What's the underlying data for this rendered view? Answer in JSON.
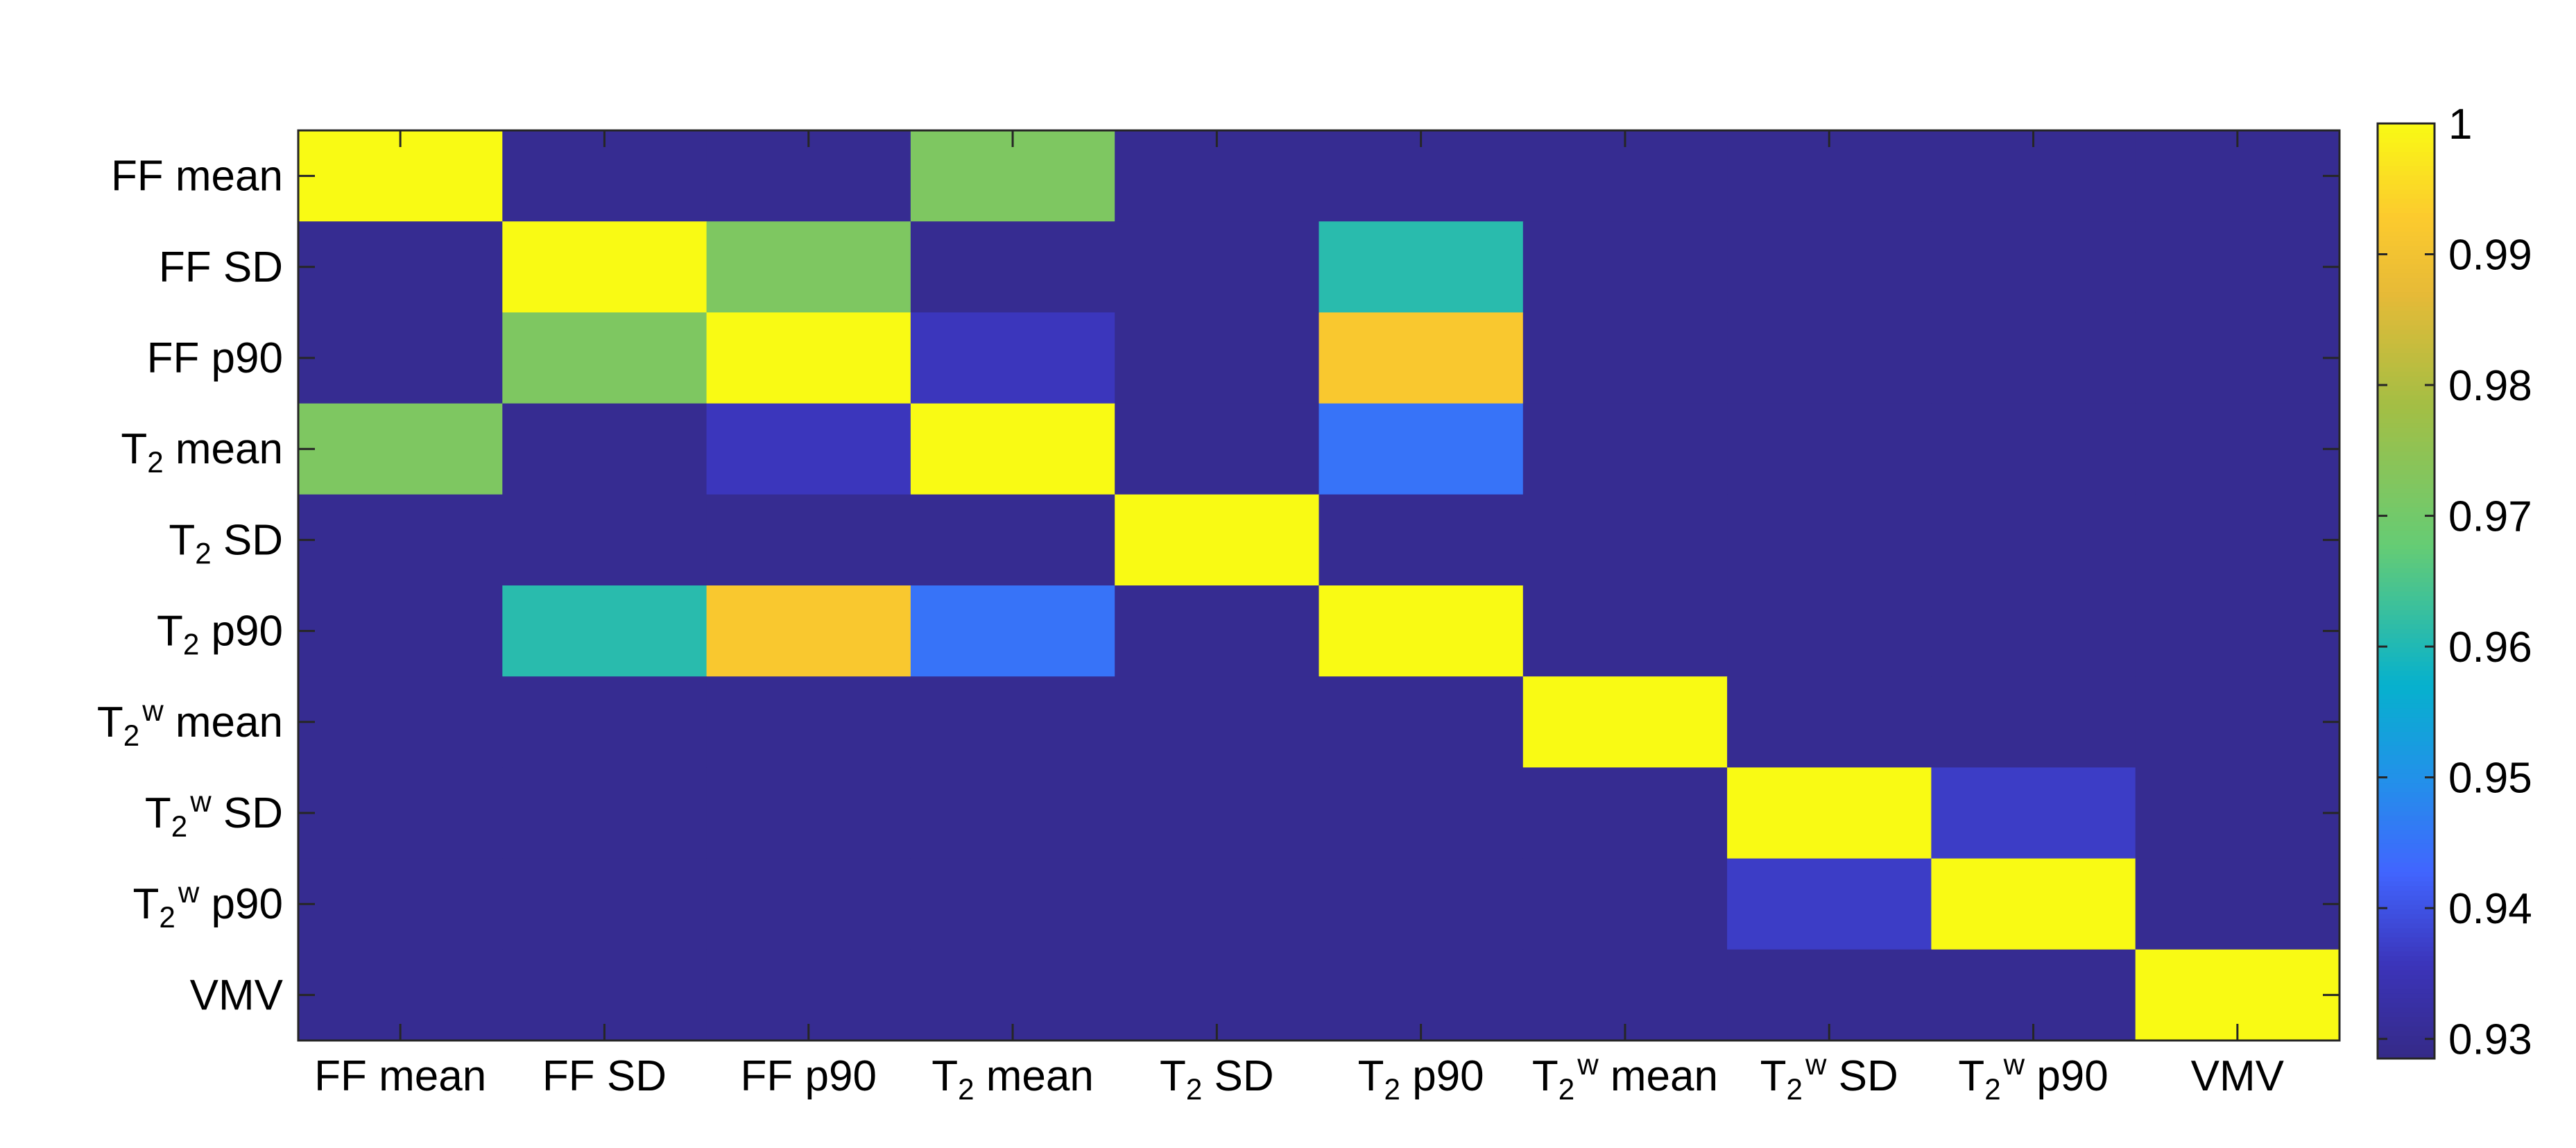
{
  "chart_data": {
    "type": "heatmap",
    "title": "",
    "xlabel": "",
    "ylabel": "",
    "labels": [
      {
        "base": "FF mean"
      },
      {
        "base": "FF SD"
      },
      {
        "base": "FF p90"
      },
      {
        "base": "T",
        "sub": "2",
        "rest": " mean"
      },
      {
        "base": "T",
        "sub": "2",
        "rest": " SD"
      },
      {
        "base": "T",
        "sub": "2",
        "rest": " p90"
      },
      {
        "base": "T",
        "sub": "2",
        "sup": "w",
        "rest": " mean"
      },
      {
        "base": "T",
        "sub": "2",
        "sup": "w",
        "rest": " SD"
      },
      {
        "base": "T",
        "sub": "2",
        "sup": "w",
        "rest": " p90"
      },
      {
        "base": "VMV"
      }
    ],
    "matrix": [
      [
        1.0,
        0.93,
        0.93,
        0.972,
        0.93,
        0.93,
        0.93,
        0.93,
        0.93,
        0.93
      ],
      [
        0.93,
        1.0,
        0.972,
        0.93,
        0.93,
        0.961,
        0.93,
        0.93,
        0.93,
        0.93
      ],
      [
        0.93,
        0.972,
        1.0,
        0.936,
        0.93,
        0.992,
        0.93,
        0.93,
        0.93,
        0.93
      ],
      [
        0.972,
        0.93,
        0.936,
        1.0,
        0.93,
        0.945,
        0.93,
        0.93,
        0.93,
        0.93
      ],
      [
        0.93,
        0.93,
        0.93,
        0.93,
        1.0,
        0.93,
        0.93,
        0.93,
        0.93,
        0.93
      ],
      [
        0.93,
        0.961,
        0.992,
        0.945,
        0.93,
        1.0,
        0.93,
        0.93,
        0.93,
        0.93
      ],
      [
        0.93,
        0.93,
        0.93,
        0.93,
        0.93,
        0.93,
        1.0,
        0.93,
        0.93,
        0.93
      ],
      [
        0.93,
        0.93,
        0.93,
        0.93,
        0.93,
        0.93,
        0.93,
        1.0,
        0.937,
        0.93
      ],
      [
        0.93,
        0.93,
        0.93,
        0.93,
        0.93,
        0.93,
        0.93,
        0.937,
        1.0,
        0.93
      ],
      [
        0.93,
        0.93,
        0.93,
        0.93,
        0.93,
        0.93,
        0.93,
        0.93,
        0.93,
        1.0
      ]
    ],
    "colorbar": {
      "min": 0.9285,
      "max": 1.0,
      "ticks": [
        {
          "value": 0.93,
          "label": "0.93"
        },
        {
          "value": 0.94,
          "label": "0.94"
        },
        {
          "value": 0.95,
          "label": "0.95"
        },
        {
          "value": 0.96,
          "label": "0.96"
        },
        {
          "value": 0.97,
          "label": "0.97"
        },
        {
          "value": 0.98,
          "label": "0.98"
        },
        {
          "value": 0.99,
          "label": "0.99"
        },
        {
          "value": 1.0,
          "label": "1"
        }
      ],
      "colormap": "parula"
    },
    "grid": false
  }
}
